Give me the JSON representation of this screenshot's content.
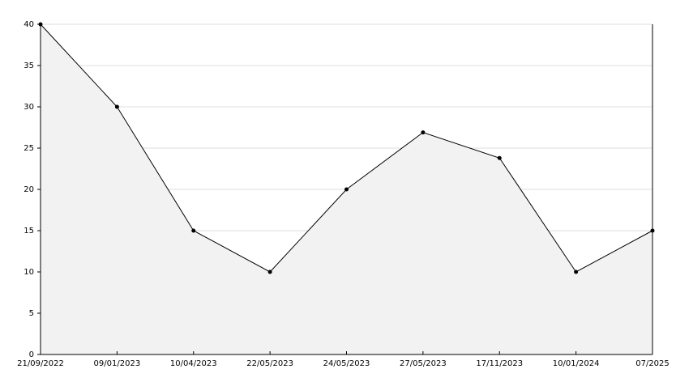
{
  "chart_data": {
    "type": "area",
    "categories": [
      "21/09/2022",
      "09/01/2023",
      "10/04/2023",
      "22/05/2023",
      "24/05/2023",
      "27/05/2023",
      "17/11/2023",
      "10/01/2024",
      "07/2025"
    ],
    "values": [
      40,
      30,
      15,
      10,
      20,
      26.9,
      23.8,
      10,
      15
    ],
    "color": "#000000",
    "fill": "#f2f2f2",
    "ylim": [
      0,
      40
    ],
    "yticks": [
      0,
      5,
      10,
      15,
      20,
      25,
      30,
      35,
      40
    ],
    "grid": true
  }
}
